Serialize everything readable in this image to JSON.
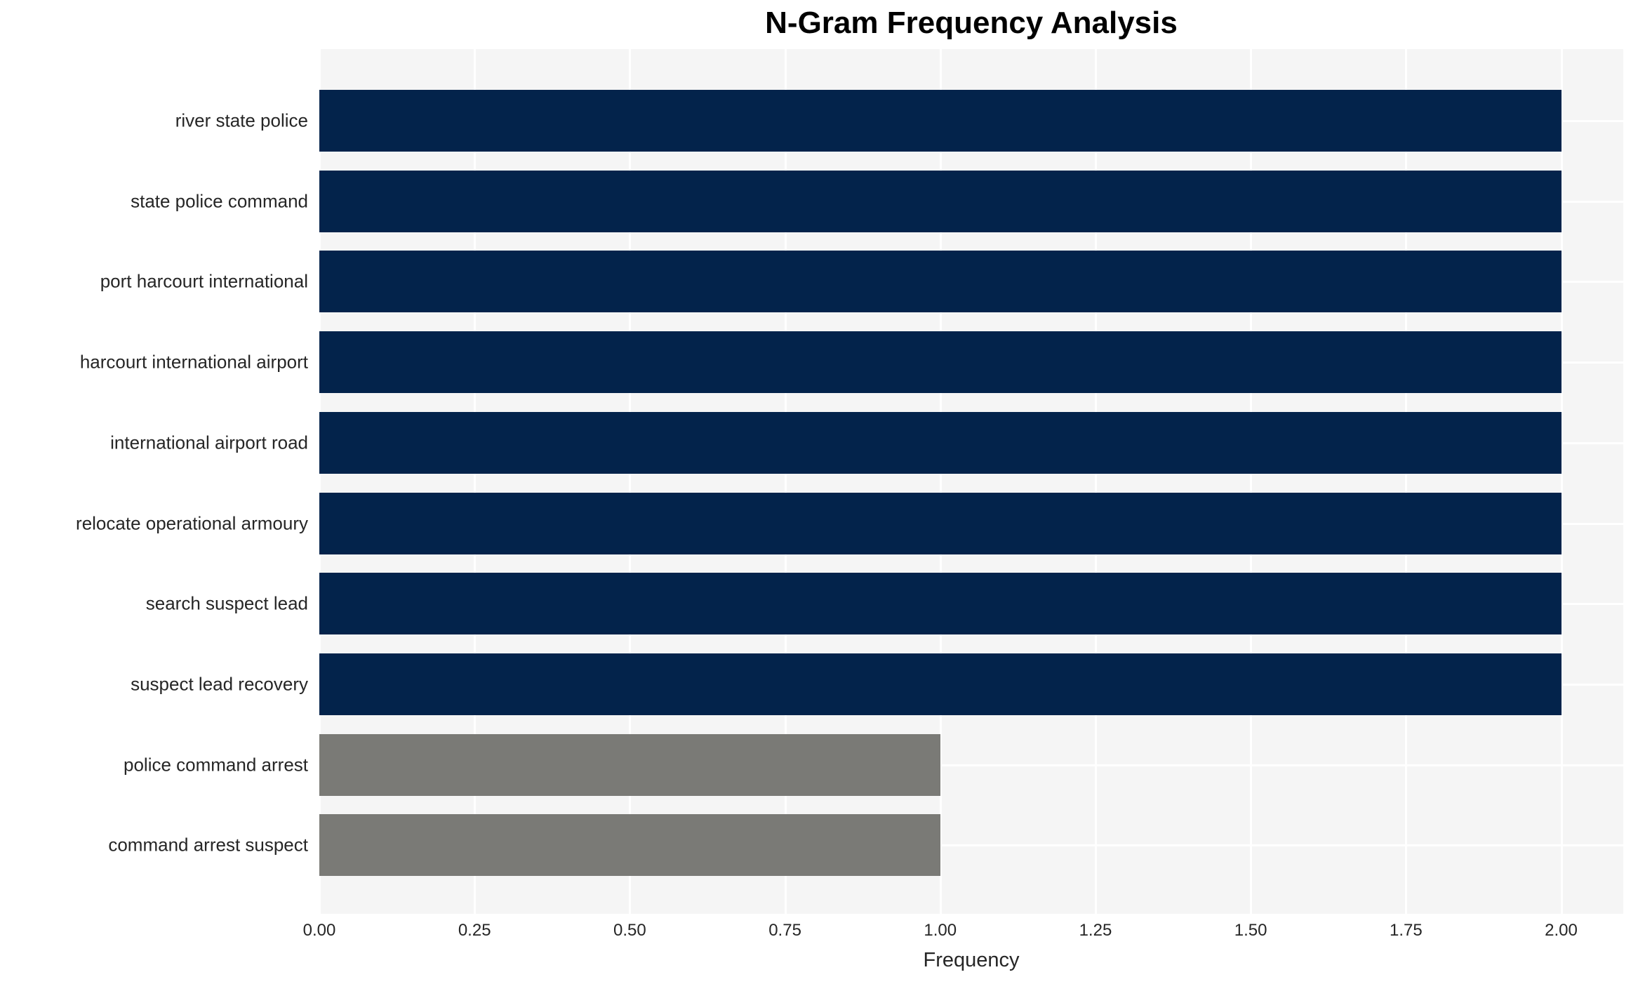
{
  "title": "N-Gram Frequency Analysis",
  "chart_data": {
    "type": "bar",
    "orientation": "horizontal",
    "title": "N-Gram Frequency Analysis",
    "xlabel": "Frequency",
    "ylabel": "",
    "categories": [
      "river state police",
      "state police command",
      "port harcourt international",
      "harcourt international airport",
      "international airport road",
      "relocate operational armoury",
      "search suspect lead",
      "suspect lead recovery",
      "police command arrest",
      "command arrest suspect"
    ],
    "values": [
      2,
      2,
      2,
      2,
      2,
      2,
      2,
      2,
      1,
      1
    ],
    "bar_colors": [
      "#03234b",
      "#03234b",
      "#03234b",
      "#03234b",
      "#03234b",
      "#03234b",
      "#03234b",
      "#03234b",
      "#7a7a76",
      "#7a7a76"
    ],
    "xlim": [
      0,
      2.1
    ],
    "xticks": [
      0,
      0.25,
      0.5,
      0.75,
      1.0,
      1.25,
      1.5,
      1.75,
      2.0
    ],
    "xtick_labels": [
      "0.00",
      "0.25",
      "0.50",
      "0.75",
      "1.00",
      "1.25",
      "1.50",
      "1.75",
      "2.00"
    ],
    "grid": true,
    "legend": null,
    "plot_bg_color": "#f5f5f5",
    "grid_color": "#ffffff",
    "figure_bg_color": "#ffffff",
    "text_color": "#262626",
    "title_color": "#000000"
  }
}
